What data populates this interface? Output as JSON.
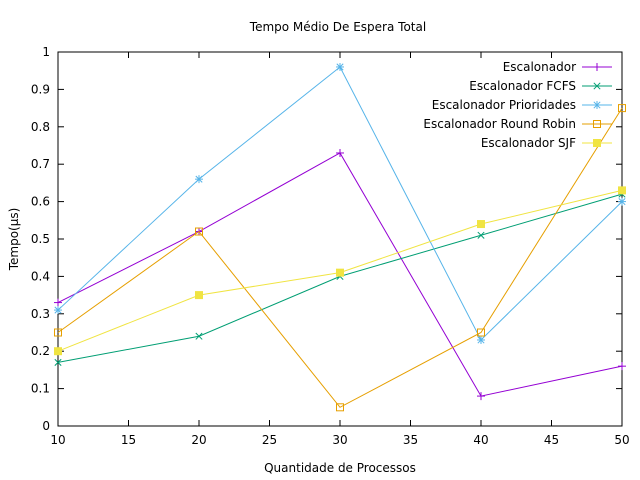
{
  "chart_data": {
    "type": "line",
    "title": "Tempo Médio De Espera Total",
    "xlabel": "Quantidade de Processos",
    "ylabel": "Tempo(µs)",
    "xlim": [
      10,
      50
    ],
    "ylim": [
      0,
      1
    ],
    "x_ticks": [
      "10",
      "15",
      "20",
      "25",
      "30",
      "35",
      "40",
      "45",
      "50"
    ],
    "y_ticks": [
      "0",
      "0.1",
      "0.2",
      "0.3",
      "0.4",
      "0.5",
      "0.6",
      "0.7",
      "0.8",
      "0.9",
      "1"
    ],
    "grid": false,
    "legend_position": "top-right",
    "x": [
      10,
      20,
      30,
      40,
      50
    ],
    "series": [
      {
        "name": "Escalonador",
        "color": "#9400d3",
        "marker": "plus",
        "values": [
          0.33,
          0.52,
          0.73,
          0.08,
          0.16
        ]
      },
      {
        "name": "Escalonador FCFS",
        "color": "#009e73",
        "marker": "cross",
        "values": [
          0.17,
          0.24,
          0.4,
          0.51,
          0.62
        ]
      },
      {
        "name": "Escalonador Prioridades",
        "color": "#56b4e9",
        "marker": "star",
        "values": [
          0.31,
          0.66,
          0.96,
          0.23,
          0.6
        ]
      },
      {
        "name": "Escalonador Round Robin",
        "color": "#e69f00",
        "marker": "square-open",
        "values": [
          0.25,
          0.52,
          0.05,
          0.25,
          0.85
        ]
      },
      {
        "name": "Escalonador SJF",
        "color": "#f0e442",
        "marker": "square-filled",
        "values": [
          0.2,
          0.35,
          0.41,
          0.54,
          0.63
        ]
      }
    ]
  }
}
